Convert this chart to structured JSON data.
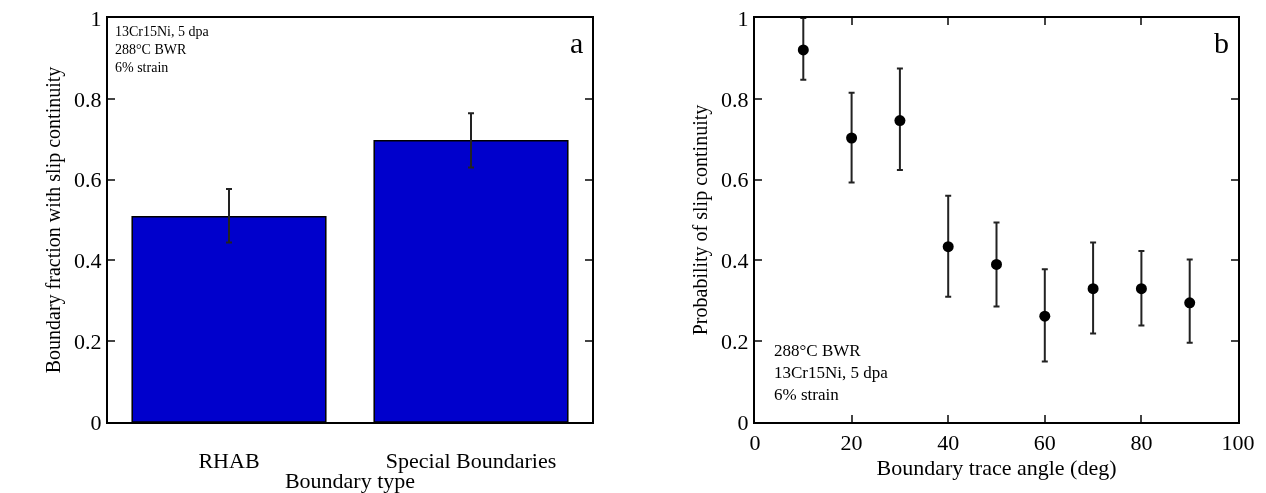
{
  "chart_data": [
    {
      "type": "bar",
      "categories": [
        "RHAB",
        "Special Boundaries"
      ],
      "values": [
        0.508,
        0.696
      ],
      "color": "#0000cc",
      "errors": [
        [
          0.444,
          0.577
        ],
        [
          0.63,
          0.764
        ]
      ],
      "xlabel": "Boundary type",
      "ylabel": "Boundary fraction with slip continuity",
      "ylim": [
        0,
        1
      ],
      "yticks": [
        0,
        0.2,
        0.4,
        0.6,
        0.8,
        1
      ],
      "grid": false,
      "annotations": [
        "13Cr15Ni, 5 dpa\n288°C BWR\n6% strain",
        "a"
      ]
    },
    {
      "type": "scatter",
      "x": [
        10,
        20,
        30,
        40,
        50,
        60,
        70,
        80,
        90
      ],
      "values": [
        0.921,
        0.703,
        0.746,
        0.434,
        0.39,
        0.262,
        0.33,
        0.33,
        0.295
      ],
      "color": "#000000",
      "marker": "circle",
      "errors": [
        [
          0.847,
          1.0
        ],
        [
          0.593,
          0.815
        ],
        [
          0.624,
          0.875
        ],
        [
          0.31,
          0.56
        ],
        [
          0.286,
          0.494
        ],
        [
          0.15,
          0.378
        ],
        [
          0.219,
          0.444
        ],
        [
          0.239,
          0.423
        ],
        [
          0.196,
          0.402
        ]
      ],
      "xlabel": "Boundary trace angle (deg)",
      "ylabel": "Probability of slip continuity",
      "xlim": [
        0,
        100
      ],
      "xticks": [
        0,
        20,
        40,
        60,
        80,
        100
      ],
      "ylim": [
        0,
        1
      ],
      "yticks": [
        0,
        0.2,
        0.4,
        0.6,
        0.8,
        1
      ],
      "grid": false,
      "annotations": [
        "288°C BWR\n13Cr15Ni, 5 dpa\n6% strain",
        "b"
      ]
    }
  ]
}
